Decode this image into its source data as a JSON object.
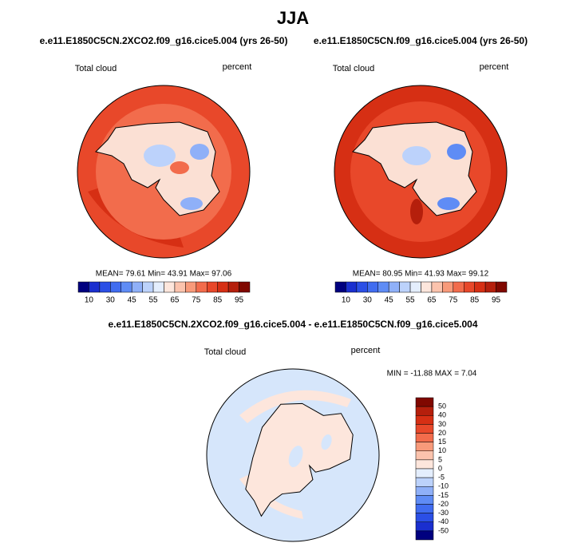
{
  "title": "JJA",
  "panels": [
    {
      "title": "e.e11.E1850C5CN.2XCO2.f09_g16.cice5.004 (yrs 26-50)",
      "variable": "Total cloud",
      "units": "percent",
      "stats": "MEAN=  79.61   Min=  43.91   Max=  97.06"
    },
    {
      "title": "e.e11.E1850C5CN.f09_g16.cice5.004 (yrs 26-50)",
      "variable": "Total cloud",
      "units": "percent",
      "stats": "MEAN=  80.95   Min=  41.93   Max=  99.12"
    },
    {
      "title": "e.e11.E1850C5CN.2XCO2.f09_g16.cice5.004 - e.e11.E1850C5CN.f09_g16.cice5.004",
      "variable": "Total cloud",
      "units": "percent",
      "stats": "MIN = -11.88 MAX =  7.04"
    }
  ],
  "colorbar": {
    "labels": [
      10,
      30,
      45,
      55,
      65,
      75,
      85,
      95
    ],
    "colors": [
      "#00007f",
      "#1a2fcf",
      "#2b4fe6",
      "#406cf0",
      "#5f8cf5",
      "#8fb0f8",
      "#bcd2fb",
      "#e4eefd",
      "#fde6dc",
      "#fbc3ad",
      "#f89a7a",
      "#f26c4c",
      "#e8482a",
      "#d62f14",
      "#b51f0c",
      "#800800"
    ]
  },
  "diff_colorbar": {
    "labels": [
      50,
      40,
      30,
      20,
      15,
      10,
      5,
      0,
      -5,
      -10,
      -15,
      -20,
      -30,
      -40,
      -50
    ],
    "colors": [
      "#800800",
      "#b51f0c",
      "#d62f14",
      "#e8482a",
      "#f26c4c",
      "#f89a7a",
      "#fbc3ad",
      "#fde6dc",
      "#e4eefd",
      "#bcd2fb",
      "#8fb0f8",
      "#5f8cf5",
      "#406cf0",
      "#2b4fe6",
      "#1a2fcf",
      "#00007f"
    ]
  }
}
